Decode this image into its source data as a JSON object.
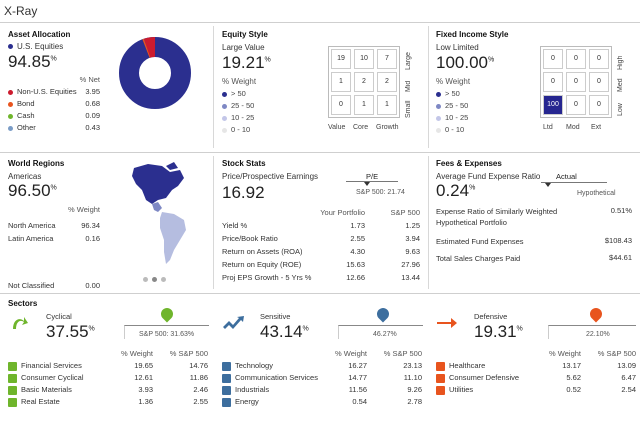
{
  "title": "X-Ray",
  "colors": {
    "navy": "#2b2f8f",
    "red": "#cc1b2e",
    "green": "#6fb52c",
    "blue": "#3d6e9e",
    "orange": "#e8541e",
    "cellhi": "#c3c6e8",
    "celldark": "#262690"
  },
  "asset": {
    "title": "Asset Allocation",
    "main_label": "U.S. Equities",
    "main_value": "94.85",
    "pct": "%",
    "col": "% Net",
    "rows": [
      {
        "label": "Non-U.S. Equities",
        "value": "3.95",
        "color": "#cc1b2e"
      },
      {
        "label": "Bond",
        "value": "0.68",
        "color": "#e8541e"
      },
      {
        "label": "Cash",
        "value": "0.09",
        "color": "#6fb52c"
      },
      {
        "label": "Other",
        "value": "0.43",
        "color": "#7a9cc6"
      }
    ]
  },
  "equity": {
    "title": "Equity Style",
    "label": "Large Value",
    "value": "19.21",
    "pct": "%",
    "col": "% Weight",
    "legend": [
      "> 50",
      "25 - 50",
      "10 - 25",
      "0 - 10"
    ],
    "grid": [
      "19",
      "10",
      "7",
      "1",
      "2",
      "2",
      "0",
      "1",
      "1"
    ],
    "rows": [
      "Large",
      "Mid",
      "Small"
    ],
    "cols": [
      "Value",
      "Core",
      "Growth"
    ]
  },
  "fixed": {
    "title": "Fixed Income Style",
    "label": "Low Limited",
    "value": "100.00",
    "pct": "%",
    "col": "% Weight",
    "legend": [
      "> 50",
      "25 - 50",
      "10 - 25",
      "0 - 10"
    ],
    "grid": [
      "0",
      "0",
      "0",
      "0",
      "0",
      "0",
      "100",
      "0",
      "0"
    ],
    "rows": [
      "High",
      "Med",
      "Low"
    ],
    "cols": [
      "Ltd",
      "Mod",
      "Ext"
    ]
  },
  "regions": {
    "title": "World Regions",
    "label": "Americas",
    "value": "96.50",
    "pct": "%",
    "col": "% Weight",
    "rows": [
      {
        "label": "North America",
        "value": "96.34"
      },
      {
        "label": "Latin America",
        "value": "0.16"
      }
    ],
    "nc_label": "Not Classified",
    "nc_value": "0.00"
  },
  "stock": {
    "title": "Stock Stats",
    "label": "Price/Prospective Earnings",
    "value": "16.92",
    "pe_label": "P/E",
    "sp_label": "S&P 500: 21.74",
    "col1": "Your Portfolio",
    "col2": "S&P 500",
    "rows": [
      {
        "label": "Yield %",
        "a": "1.73",
        "b": "1.25"
      },
      {
        "label": "Price/Book Ratio",
        "a": "2.55",
        "b": "3.94"
      },
      {
        "label": "Return on Assets (ROA)",
        "a": "4.30",
        "b": "9.63"
      },
      {
        "label": "Return on Equity (ROE)",
        "a": "15.63",
        "b": "27.96"
      },
      {
        "label": "Proj EPS Growth - 5 Yrs %",
        "a": "12.66",
        "b": "13.44"
      }
    ]
  },
  "fees": {
    "title": "Fees & Expenses",
    "label": "Average Fund Expense Ratio",
    "value": "0.24",
    "pct": "%",
    "actual": "Actual",
    "hypo": "Hypothetical",
    "rows": [
      {
        "label": "Expense Ratio of Similarly Weighted Hypothetical Portfolio",
        "value": "0.51%"
      },
      {
        "label": "Estimated Fund Expenses",
        "value": "$108.43"
      },
      {
        "label": "Total Sales Charges Paid",
        "value": "$44.61"
      }
    ]
  },
  "sectors": {
    "title": "Sectors",
    "col1": "% Weight",
    "col2": "% S&P 500",
    "groups": [
      {
        "label": "Cyclical",
        "value": "37.55",
        "pct": "%",
        "sp": "S&P 500: 31.63%",
        "rows": [
          {
            "label": "Financial Services",
            "a": "19.65",
            "b": "14.76"
          },
          {
            "label": "Consumer Cyclical",
            "a": "12.61",
            "b": "11.86"
          },
          {
            "label": "Basic Materials",
            "a": "3.93",
            "b": "2.46"
          },
          {
            "label": "Real Estate",
            "a": "1.36",
            "b": "2.55"
          }
        ]
      },
      {
        "label": "Sensitive",
        "value": "43.14",
        "pct": "%",
        "sp": "46.27%",
        "rows": [
          {
            "label": "Technology",
            "a": "16.27",
            "b": "23.13"
          },
          {
            "label": "Communication Services",
            "a": "14.77",
            "b": "11.10"
          },
          {
            "label": "Industrials",
            "a": "11.56",
            "b": "9.26"
          },
          {
            "label": "Energy",
            "a": "0.54",
            "b": "2.78"
          }
        ]
      },
      {
        "label": "Defensive",
        "value": "19.31",
        "pct": "%",
        "sp": "22.10%",
        "rows": [
          {
            "label": "Healthcare",
            "a": "13.17",
            "b": "13.09"
          },
          {
            "label": "Consumer Defensive",
            "a": "5.62",
            "b": "6.47"
          },
          {
            "label": "Utilities",
            "a": "0.52",
            "b": "2.54"
          }
        ]
      }
    ]
  }
}
